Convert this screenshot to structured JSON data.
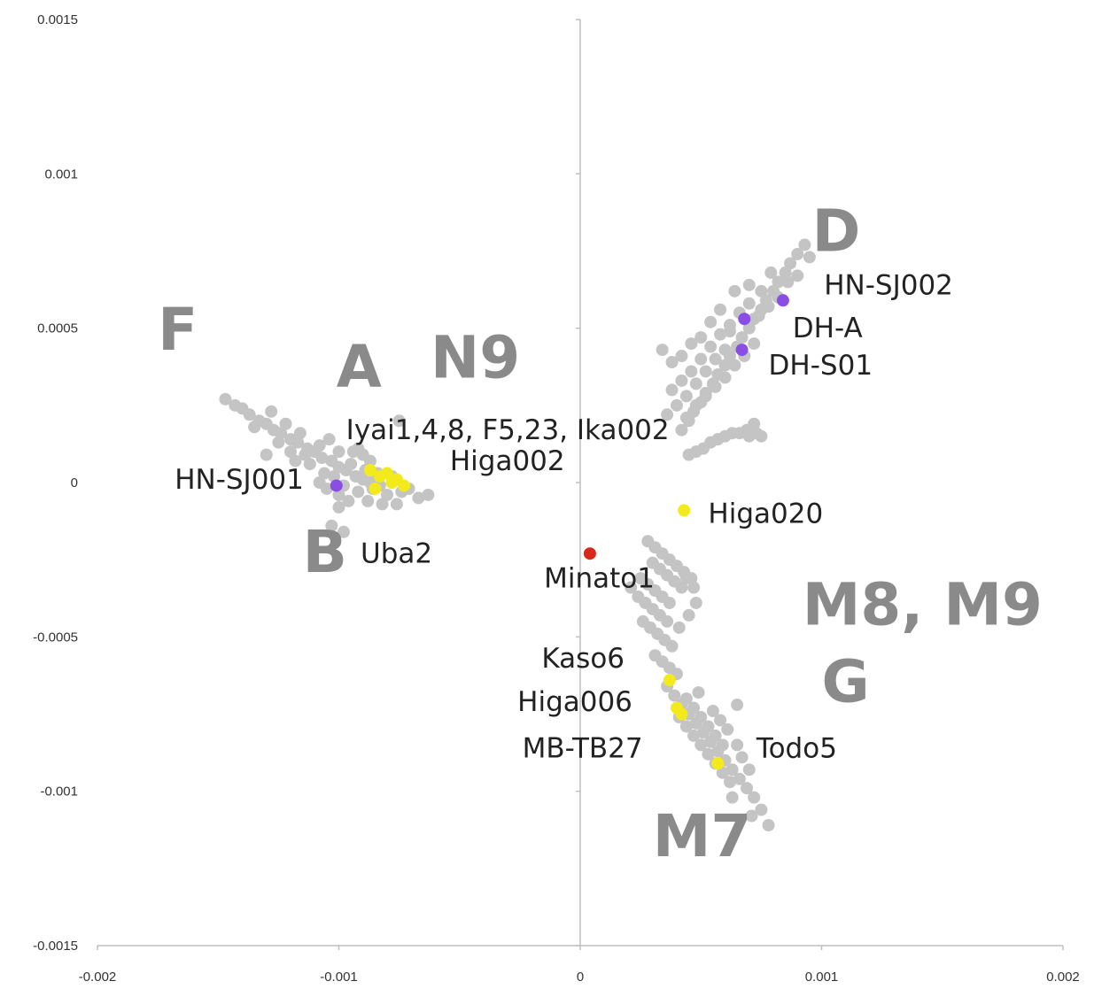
{
  "chart_data": {
    "type": "scatter",
    "title": "",
    "xlabel": "",
    "ylabel": "",
    "xlim": [
      -0.002,
      0.002
    ],
    "ylim": [
      -0.0015,
      0.0015
    ],
    "grid": false,
    "legend": "none",
    "x_ticks": [
      -0.002,
      -0.001,
      0,
      0.001,
      0.002
    ],
    "x_tick_labels": [
      "-0.002",
      "-0.001",
      "0",
      "0.001",
      "0.002"
    ],
    "y_ticks": [
      0.0015,
      0.001,
      0.0005,
      0,
      -0.0005,
      -0.001,
      -0.0015
    ],
    "y_tick_labels": [
      "0.0015",
      "0.001",
      "0.0005",
      "0",
      "-0.0005",
      "-0.001",
      "-0.0015"
    ],
    "colors": {
      "background_samples": "#c4c4c4",
      "yellow_samples": "#f2ea1a",
      "purple_samples": "#8a4de6",
      "red_sample": "#d8281c",
      "axis": "#bfbfbf",
      "group_label": "#8a8a8a"
    },
    "series": [
      {
        "color": "#c4c4c4",
        "points": [
          [
            -0.00147,
            0.00027
          ],
          [
            -0.00143,
            0.00025
          ],
          [
            -0.0014,
            0.00024
          ],
          [
            -0.00137,
            0.00022
          ],
          [
            -0.00133,
            0.0002
          ],
          [
            -0.0013,
            0.00019
          ],
          [
            -0.00127,
            0.00017
          ],
          [
            -0.00124,
            0.00016
          ],
          [
            -0.0012,
            0.00014
          ],
          [
            -0.00117,
            0.00013
          ],
          [
            -0.00113,
            0.00011
          ],
          [
            -0.0011,
            0.0001
          ],
          [
            -0.00107,
            8e-05
          ],
          [
            -0.00103,
            7e-05
          ],
          [
            -0.001,
            5e-05
          ],
          [
            -0.00097,
            4e-05
          ],
          [
            -0.00093,
            2e-05
          ],
          [
            -0.0009,
            1e-05
          ],
          [
            -0.00087,
            0.0
          ],
          [
            -0.00083,
            -1e-05
          ],
          [
            -0.00128,
            0.00023
          ],
          [
            -0.00122,
            0.00019
          ],
          [
            -0.00116,
            0.00016
          ],
          [
            -0.00108,
            0.00012
          ],
          [
            -0.00104,
            0.00014
          ],
          [
            -0.00135,
            0.00018
          ],
          [
            -0.0012,
            0.0001
          ],
          [
            -0.00112,
            6e-05
          ],
          [
            -0.00106,
            3e-05
          ],
          [
            -0.001,
            0.0001
          ],
          [
            -0.00098,
            -1e-05
          ],
          [
            -0.00095,
            6e-05
          ],
          [
            -0.00092,
            -3e-05
          ],
          [
            -0.00089,
            4e-05
          ],
          [
            -0.00086,
            -2e-05
          ],
          [
            -0.00084,
            3e-05
          ],
          [
            -0.0008,
            -4e-05
          ],
          [
            -0.00078,
            0.0
          ],
          [
            -0.00074,
            -3e-05
          ],
          [
            -0.00071,
            -2e-05
          ],
          [
            -0.00067,
            -5e-05
          ],
          [
            -0.00063,
            -4e-05
          ],
          [
            -0.00094,
            0.0001
          ],
          [
            -0.0009,
            9e-05
          ],
          [
            -0.00096,
            -6e-05
          ],
          [
            -0.00088,
            -6e-05
          ],
          [
            -0.00082,
            -7e-05
          ],
          [
            -0.00076,
            -7e-05
          ],
          [
            -0.001,
            -8e-05
          ],
          [
            -0.00105,
            -2e-05
          ],
          [
            -0.00108,
            0.0
          ],
          [
            -0.00102,
            2e-05
          ],
          [
            -0.001,
            -4e-05
          ],
          [
            -0.0011,
            0.0001
          ],
          [
            -0.00118,
            7e-05
          ],
          [
            -0.0013,
            9e-05
          ],
          [
            -0.00125,
            0.00013
          ],
          [
            -0.00114,
            9e-05
          ],
          [
            -0.00103,
            -0.00014
          ],
          [
            -0.00098,
            -0.00016
          ],
          [
            -0.00075,
            0.0002
          ],
          [
            -0.00092,
            0.00011
          ],
          [
            -0.00087,
            7e-05
          ],
          [
            -0.00078,
            2e-05
          ],
          [
            0.00093,
            0.00077
          ],
          [
            0.0009,
            0.00074
          ],
          [
            0.00087,
            0.00071
          ],
          [
            0.00085,
            0.00068
          ],
          [
            0.00082,
            0.00065
          ],
          [
            0.0008,
            0.00062
          ],
          [
            0.00077,
            0.00059
          ],
          [
            0.00075,
            0.00056
          ],
          [
            0.00072,
            0.00053
          ],
          [
            0.0007,
            0.0005
          ],
          [
            0.00067,
            0.00047
          ],
          [
            0.00065,
            0.00044
          ],
          [
            0.00062,
            0.00041
          ],
          [
            0.0006,
            0.00038
          ],
          [
            0.00057,
            0.00035
          ],
          [
            0.00055,
            0.00032
          ],
          [
            0.00052,
            0.00029
          ],
          [
            0.0005,
            0.00026
          ],
          [
            0.00047,
            0.00023
          ],
          [
            0.00045,
            0.0002
          ],
          [
            0.00042,
            0.00017
          ],
          [
            0.0009,
            0.00067
          ],
          [
            0.00086,
            0.00065
          ],
          [
            0.00082,
            0.0006
          ],
          [
            0.00078,
            0.00057
          ],
          [
            0.00074,
            0.00054
          ],
          [
            0.0007,
            0.00058
          ],
          [
            0.00066,
            0.00055
          ],
          [
            0.00062,
            0.00051
          ],
          [
            0.00058,
            0.00048
          ],
          [
            0.00054,
            0.00044
          ],
          [
            0.0005,
            0.0004
          ],
          [
            0.00046,
            0.00036
          ],
          [
            0.00042,
            0.00033
          ],
          [
            0.00038,
            0.0003
          ],
          [
            0.00034,
            0.00043
          ],
          [
            0.00038,
            0.00039
          ],
          [
            0.00042,
            0.00041
          ],
          [
            0.00046,
            0.00045
          ],
          [
            0.0005,
            0.00047
          ],
          [
            0.00054,
            0.00052
          ],
          [
            0.00058,
            0.00056
          ],
          [
            0.00062,
            0.00049
          ],
          [
            0.0006,
            0.00043
          ],
          [
            0.00056,
            0.0004
          ],
          [
            0.00052,
            0.00036
          ],
          [
            0.00048,
            0.00032
          ],
          [
            0.00044,
            0.00028
          ],
          [
            0.0004,
            0.00025
          ],
          [
            0.00036,
            0.00022
          ],
          [
            0.00064,
            0.00062
          ],
          [
            0.0007,
            0.00064
          ],
          [
            0.00075,
            0.00062
          ],
          [
            0.00079,
            0.00068
          ],
          [
            0.00095,
            0.00073
          ],
          [
            0.00072,
            0.00045
          ],
          [
            0.00068,
            0.00041
          ],
          [
            0.00064,
            0.00038
          ],
          [
            0.0006,
            0.00034
          ],
          [
            0.00056,
            0.00031
          ],
          [
            0.00052,
            0.00028
          ],
          [
            0.00048,
            0.00025
          ],
          [
            0.00044,
            0.00021
          ],
          [
            0.00045,
            9e-05
          ],
          [
            0.00048,
            0.0001
          ],
          [
            0.00051,
            0.00011
          ],
          [
            0.00054,
            0.00013
          ],
          [
            0.00057,
            0.00014
          ],
          [
            0.0006,
            0.00015
          ],
          [
            0.00063,
            0.00016
          ],
          [
            0.00066,
            0.00016
          ],
          [
            0.00069,
            0.00017
          ],
          [
            0.00072,
            0.00019
          ],
          [
            0.00073,
            0.00016
          ],
          [
            0.0007,
            0.00015
          ],
          [
            0.00075,
            0.00015
          ],
          [
            0.00028,
            -0.00019
          ],
          [
            0.00031,
            -0.00021
          ],
          [
            0.00034,
            -0.00023
          ],
          [
            0.00037,
            -0.00025
          ],
          [
            0.0004,
            -0.00027
          ],
          [
            0.00043,
            -0.00029
          ],
          [
            0.00046,
            -0.00031
          ],
          [
            0.0003,
            -0.00026
          ],
          [
            0.00033,
            -0.00028
          ],
          [
            0.00036,
            -0.0003
          ],
          [
            0.00039,
            -0.00032
          ],
          [
            0.00042,
            -0.00034
          ],
          [
            0.00025,
            -0.00031
          ],
          [
            0.00028,
            -0.00033
          ],
          [
            0.00031,
            -0.00035
          ],
          [
            0.00034,
            -0.00037
          ],
          [
            0.00037,
            -0.00039
          ],
          [
            0.00021,
            -0.00034
          ],
          [
            0.00024,
            -0.00037
          ],
          [
            0.00027,
            -0.00039
          ],
          [
            0.0003,
            -0.00041
          ],
          [
            0.00033,
            -0.00043
          ],
          [
            0.00036,
            -0.00045
          ],
          [
            0.00026,
            -0.00045
          ],
          [
            0.00029,
            -0.00047
          ],
          [
            0.00032,
            -0.00049
          ],
          [
            0.00035,
            -0.00051
          ],
          [
            0.00038,
            -0.00053
          ],
          [
            0.00031,
            -0.00056
          ],
          [
            0.00034,
            -0.00058
          ],
          [
            0.00037,
            -0.0006
          ],
          [
            0.0004,
            -0.00062
          ],
          [
            0.00044,
            -0.00031
          ],
          [
            0.00047,
            -0.00034
          ],
          [
            0.00048,
            -0.00039
          ],
          [
            0.00045,
            -0.00043
          ],
          [
            0.00041,
            -0.00047
          ],
          [
            0.00036,
            -0.00066
          ],
          [
            0.00039,
            -0.00069
          ],
          [
            0.00042,
            -0.00072
          ],
          [
            0.00045,
            -0.00075
          ],
          [
            0.00048,
            -0.00078
          ],
          [
            0.00051,
            -0.00081
          ],
          [
            0.00054,
            -0.00084
          ],
          [
            0.00057,
            -0.00087
          ],
          [
            0.0006,
            -0.0009
          ],
          [
            0.00063,
            -0.00093
          ],
          [
            0.00066,
            -0.00096
          ],
          [
            0.00069,
            -0.00099
          ],
          [
            0.00072,
            -0.00102
          ],
          [
            0.00075,
            -0.00106
          ],
          [
            0.00044,
            -0.0007
          ],
          [
            0.00047,
            -0.00073
          ],
          [
            0.0005,
            -0.00076
          ],
          [
            0.00053,
            -0.00079
          ],
          [
            0.00056,
            -0.00082
          ],
          [
            0.00059,
            -0.00085
          ],
          [
            0.00041,
            -0.00076
          ],
          [
            0.00044,
            -0.00079
          ],
          [
            0.00047,
            -0.00082
          ],
          [
            0.0005,
            -0.00085
          ],
          [
            0.00053,
            -0.00088
          ],
          [
            0.00056,
            -0.00091
          ],
          [
            0.00059,
            -0.00094
          ],
          [
            0.00062,
            -0.00097
          ],
          [
            0.00065,
            -0.00085
          ],
          [
            0.00061,
            -0.0008
          ],
          [
            0.00058,
            -0.00077
          ],
          [
            0.00055,
            -0.00074
          ],
          [
            0.00049,
            -0.00068
          ],
          [
            0.0007,
            -0.00093
          ],
          [
            0.00067,
            -0.00089
          ],
          [
            0.00063,
            -0.00102
          ],
          [
            0.00071,
            -0.00108
          ],
          [
            0.00078,
            -0.00111
          ],
          [
            0.00065,
            -0.00072
          ]
        ]
      },
      {
        "color": "#f2ea1a",
        "points": [
          [
            -0.00087,
            4e-05
          ],
          [
            -0.00083,
            2e-05
          ],
          [
            -0.0008,
            3e-05
          ],
          [
            -0.00076,
            1e-05
          ],
          [
            -0.00073,
            -1e-05
          ],
          [
            -0.00078,
            0.0
          ],
          [
            -0.00085,
            -2e-05
          ],
          [
            0.00043,
            -9e-05
          ],
          [
            0.00037,
            -0.00064
          ],
          [
            0.0004,
            -0.00073
          ],
          [
            0.00042,
            -0.00075
          ],
          [
            0.00057,
            -0.00091
          ]
        ]
      },
      {
        "color": "#8a4de6",
        "points": [
          [
            -0.00101,
            -1e-05
          ],
          [
            0.00084,
            0.00059
          ],
          [
            0.00068,
            0.00053
          ],
          [
            0.00067,
            0.00043
          ]
        ]
      },
      {
        "color": "#d8281c",
        "points": [
          [
            4e-05,
            -0.00023
          ]
        ]
      }
    ],
    "sample_labels": [
      {
        "text": "HN-SJ002",
        "x": 0.00101,
        "y": 0.00061
      },
      {
        "text": "DH-A",
        "x": 0.00088,
        "y": 0.00047
      },
      {
        "text": "DH-S01",
        "x": 0.00078,
        "y": 0.00035
      },
      {
        "text": "Iyai1,4,8, F5,23, Ika002",
        "x": -0.00097,
        "y": 0.00014
      },
      {
        "text": "Higa002",
        "x": -0.00054,
        "y": 4e-05
      },
      {
        "text": "HN-SJ001",
        "x": -0.00168,
        "y": -2e-05
      },
      {
        "text": "Higa020",
        "x": 0.00053,
        "y": -0.00013
      },
      {
        "text": "Uba2",
        "x": -0.00091,
        "y": -0.00026
      },
      {
        "text": "Minato1",
        "x": -0.00015,
        "y": -0.00034
      },
      {
        "text": "Kaso6",
        "x": -0.00016,
        "y": -0.0006
      },
      {
        "text": "Higa006",
        "x": -0.00026,
        "y": -0.00074
      },
      {
        "text": "MB-TB27",
        "x": -0.00024,
        "y": -0.00089
      },
      {
        "text": "Todo5",
        "x": 0.00073,
        "y": -0.00089
      }
    ],
    "group_labels": [
      {
        "text": "F",
        "x": -0.00175,
        "y": 0.00043
      },
      {
        "text": "A",
        "x": -0.00101,
        "y": 0.00031
      },
      {
        "text": "N9",
        "x": -0.00062,
        "y": 0.00034
      },
      {
        "text": "D",
        "x": 0.00096,
        "y": 0.00075
      },
      {
        "text": "B",
        "x": -0.00115,
        "y": -0.00029
      },
      {
        "text": "M8, M9",
        "x": 0.00092,
        "y": -0.00046
      },
      {
        "text": "G",
        "x": 0.001,
        "y": -0.00071
      },
      {
        "text": "M7",
        "x": 0.0003,
        "y": -0.00121
      }
    ]
  }
}
